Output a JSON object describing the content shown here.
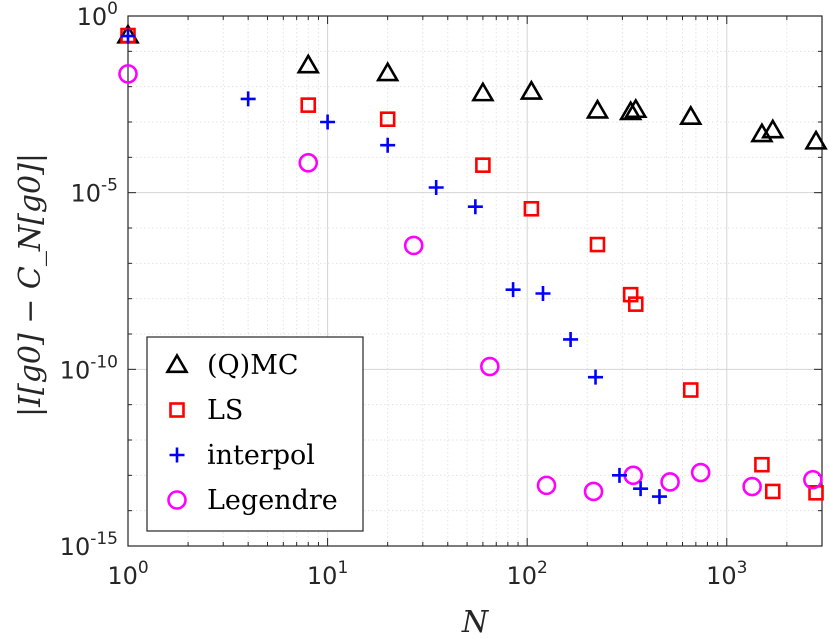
{
  "chart_data": {
    "type": "scatter",
    "xscale": "log",
    "yscale": "log",
    "xlim": [
      1,
      3000
    ],
    "ylim": [
      1e-15,
      1
    ],
    "xlabel": "N",
    "ylabel": "|I[g0] − C_N[g0]|",
    "grid": true,
    "legend_position": "bottom-left",
    "x_ticks": [
      {
        "value": 1,
        "base": "10",
        "exp": "0"
      },
      {
        "value": 10,
        "base": "10",
        "exp": "1"
      },
      {
        "value": 100,
        "base": "10",
        "exp": "2"
      },
      {
        "value": 1000,
        "base": "10",
        "exp": "3"
      }
    ],
    "y_ticks": [
      {
        "value": 1,
        "base": "10",
        "exp": "0"
      },
      {
        "value": 1e-05,
        "base": "10",
        "exp": "-5"
      },
      {
        "value": 1e-10,
        "base": "10",
        "exp": "-10"
      },
      {
        "value": 1e-15,
        "base": "10",
        "exp": "-15"
      }
    ],
    "series": [
      {
        "name": "(Q)MC",
        "marker": "triangle",
        "color": "#000000",
        "points": [
          [
            1,
            0.28
          ],
          [
            8,
            0.04
          ],
          [
            20,
            0.024
          ],
          [
            60,
            0.0065
          ],
          [
            105,
            0.0072
          ],
          [
            225,
            0.0021
          ],
          [
            330,
            0.0019
          ],
          [
            350,
            0.0022
          ],
          [
            660,
            0.0014
          ],
          [
            1500,
            0.00045
          ],
          [
            1700,
            0.00058
          ],
          [
            2800,
            0.00028
          ]
        ]
      },
      {
        "name": "LS",
        "marker": "square",
        "color": "#ff0000",
        "points": [
          [
            1,
            0.28
          ],
          [
            8,
            0.003
          ],
          [
            20,
            0.0012
          ],
          [
            60,
            6e-05
          ],
          [
            105,
            3.5e-06
          ],
          [
            225,
            3.4e-07
          ],
          [
            330,
            1.3e-08
          ],
          [
            350,
            7e-09
          ],
          [
            660,
            2.6e-11
          ],
          [
            1500,
            2e-13
          ],
          [
            1700,
            3.5e-14
          ],
          [
            2800,
            3.2e-14
          ]
        ]
      },
      {
        "name": "interpol",
        "marker": "plus",
        "color": "#0000ff",
        "points": [
          [
            1,
            0.27
          ],
          [
            4,
            0.0045
          ],
          [
            10,
            0.001
          ],
          [
            20,
            0.00022
          ],
          [
            35,
            1.4e-05
          ],
          [
            55,
            4e-06
          ],
          [
            85,
            1.8e-08
          ],
          [
            120,
            1.4e-08
          ],
          [
            165,
            7e-10
          ],
          [
            220,
            6e-11
          ],
          [
            290,
            1e-13
          ],
          [
            370,
            4.2e-14
          ],
          [
            460,
            2.5e-14
          ]
        ]
      },
      {
        "name": "Legendre",
        "marker": "circle",
        "color": "#ff00ff",
        "points": [
          [
            1,
            0.023
          ],
          [
            8,
            7e-05
          ],
          [
            27,
            3.2e-07
          ],
          [
            65,
            1.2e-10
          ],
          [
            125,
            5.2e-14
          ],
          [
            215,
            3.5e-14
          ],
          [
            340,
            1e-13
          ],
          [
            520,
            6.5e-14
          ],
          [
            740,
            1.2e-13
          ],
          [
            1340,
            4.8e-14
          ],
          [
            2700,
            7.5e-14
          ]
        ]
      }
    ]
  }
}
